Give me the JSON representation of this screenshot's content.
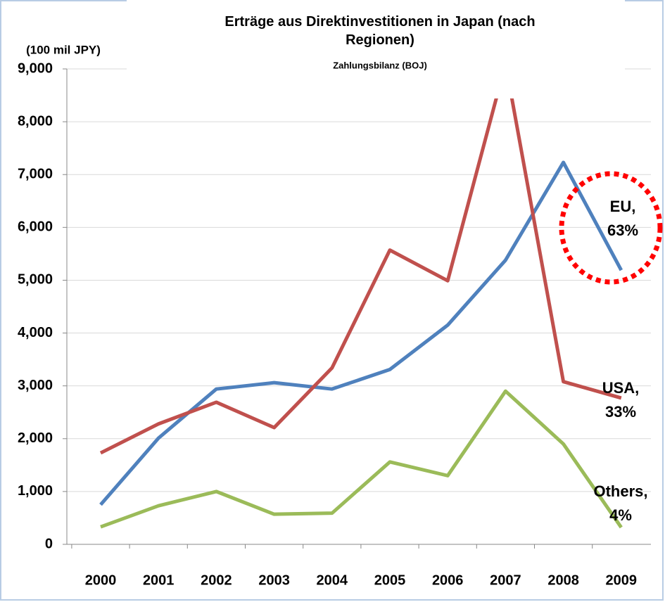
{
  "chart_data": {
    "type": "line",
    "title": "Erträge aus Direktinvestitionen in Japan (nach Regionen)",
    "subtitle": "Zahlungsbilanz (BOJ)",
    "y_label": "(100 mil  JPY)",
    "categories": [
      "2000",
      "2001",
      "2002",
      "2003",
      "2004",
      "2005",
      "2006",
      "2007",
      "2008",
      "2009"
    ],
    "series": [
      {
        "name": "EU",
        "color": "#4f81bd",
        "values": [
          750,
          2010,
          2940,
          3060,
          2940,
          3310,
          4150,
          5380,
          7230,
          5190
        ]
      },
      {
        "name": "USA",
        "color": "#c0504d",
        "values": [
          1730,
          2280,
          2690,
          2210,
          3340,
          5570,
          4990,
          9100,
          3080,
          2770
        ]
      },
      {
        "name": "Others",
        "color": "#9bbb59",
        "values": [
          330,
          730,
          1000,
          570,
          590,
          1560,
          1300,
          2900,
          1900,
          320
        ]
      }
    ],
    "annotations": [
      [
        "EU,",
        "63%"
      ],
      [
        "USA,",
        "33%"
      ],
      [
        "Others,",
        "4%"
      ]
    ],
    "ylim": [
      0,
      9000
    ],
    "yticks": [
      {
        "value": 0,
        "label": "0"
      },
      {
        "value": 1000,
        "label": "1,000"
      },
      {
        "value": 2000,
        "label": "2,000"
      },
      {
        "value": 3000,
        "label": "3,000"
      },
      {
        "value": 4000,
        "label": "4,000"
      },
      {
        "value": 5000,
        "label": "5,000"
      },
      {
        "value": 6000,
        "label": "6,000"
      },
      {
        "value": 7000,
        "label": "7,000"
      },
      {
        "value": 8000,
        "label": "8,000"
      },
      {
        "value": 9000,
        "label": "9,000"
      }
    ],
    "grid": true
  }
}
